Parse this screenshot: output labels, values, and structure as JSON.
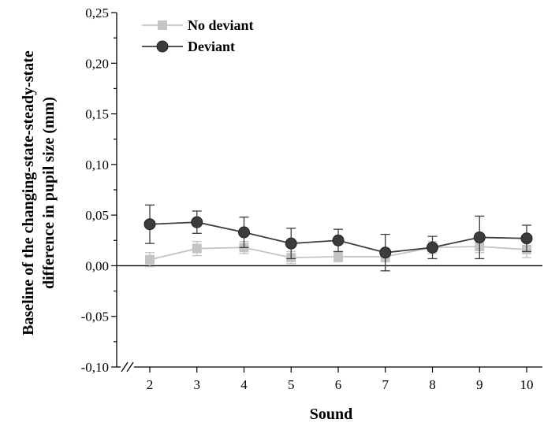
{
  "chart_data": {
    "type": "line",
    "xlabel": "Sound",
    "ylabel_lines": [
      "Baseline of the changing-state-steady-state",
      "difference in pupil size (mm)"
    ],
    "x": [
      2,
      3,
      4,
      5,
      6,
      7,
      8,
      9,
      10
    ],
    "x_tick_labels": [
      "2",
      "3",
      "4",
      "5",
      "6",
      "7",
      "8",
      "9",
      "10"
    ],
    "ylim": [
      -0.1,
      0.25
    ],
    "y_ticks": [
      -0.1,
      -0.05,
      0.0,
      0.05,
      0.1,
      0.15,
      0.2,
      0.25
    ],
    "y_tick_labels": [
      "-0,10",
      "-0,05",
      "0,00",
      "0,05",
      "0,10",
      "0,15",
      "0,20",
      "0,25"
    ],
    "axis_break": true,
    "grid": false,
    "legend_position": "top-left",
    "series": [
      {
        "name": "No deviant",
        "marker": "square",
        "color": "#c4c4c4",
        "values": [
          0.006,
          0.017,
          0.018,
          0.008,
          0.009,
          0.009,
          0.018,
          0.019,
          0.016
        ],
        "error": [
          0.007,
          0.007,
          0.006,
          0.006,
          0.005,
          0.005,
          0.006,
          0.006,
          0.008
        ]
      },
      {
        "name": "Deviant",
        "marker": "circle",
        "color": "#3c3c3c",
        "values": [
          0.041,
          0.043,
          0.033,
          0.022,
          0.025,
          0.013,
          0.018,
          0.028,
          0.027
        ],
        "error": [
          0.019,
          0.011,
          0.015,
          0.015,
          0.011,
          0.018,
          0.011,
          0.021,
          0.013
        ]
      }
    ]
  }
}
